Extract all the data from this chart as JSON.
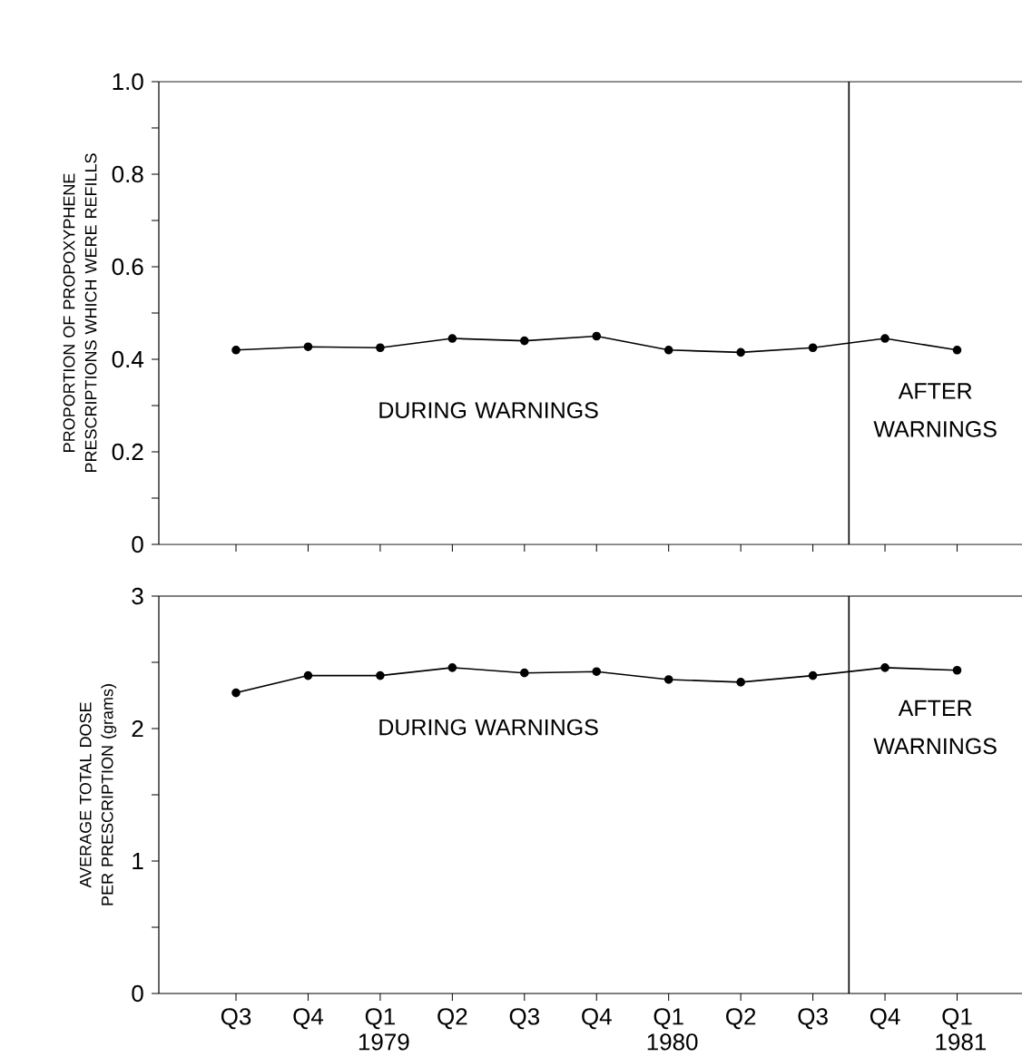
{
  "chart_data": [
    {
      "type": "line",
      "ylabel": "PROPORTION OF PROPOXYPHENE PRESCRIPTIONS WHICH WERE REFILLS",
      "categories": [
        null,
        null,
        null,
        null,
        null,
        null,
        null,
        null,
        null,
        null,
        null
      ],
      "series": [
        {
          "color": "#000000",
          "values": [
            0.42,
            0.427,
            0.425,
            0.445,
            0.44,
            0.45,
            0.42,
            0.415,
            0.425,
            0.445,
            0.42
          ]
        }
      ],
      "ylim": [
        0,
        1
      ],
      "yticks": [
        0,
        {
          "value": 0.1,
          "label": null
        },
        0.2,
        {
          "value": 0.3,
          "label": null
        },
        0.4,
        {
          "value": 0.5,
          "label": null
        },
        0.6,
        {
          "value": 0.7,
          "label": null
        },
        0.8,
        {
          "value": 0.9,
          "label": null
        },
        {
          "value": 1,
          "label": "1.0"
        }
      ],
      "annotations": [
        "DURING WARNINGS",
        "AFTER WARNINGS"
      ],
      "marker": "circle",
      "grid": false,
      "tick_labels": "y"
    },
    {
      "type": "line",
      "ylabel": "AVERAGE TOTAL DOSE PER PRESCRIPTION (grams)",
      "categories": [
        "Q3",
        "Q4",
        "Q1 1979",
        "Q2",
        "Q3",
        "Q4",
        "Q1 1980",
        "Q2",
        "Q3",
        "Q4",
        "Q1 1981"
      ],
      "series": [
        {
          "color": "#000000",
          "values": [
            2.27,
            2.4,
            2.4,
            2.46,
            2.42,
            2.43,
            2.37,
            2.35,
            2.4,
            2.46,
            2.44
          ]
        }
      ],
      "ylim": [
        0,
        3
      ],
      "yticks": [
        0,
        {
          "value": 0.5,
          "label": null
        },
        1,
        {
          "value": 1.5,
          "label": null
        },
        2,
        {
          "value": 2.5,
          "label": null
        },
        3
      ],
      "annotations": [
        "DURING WARNINGS",
        "AFTER WARNINGS"
      ],
      "marker": "circle",
      "grid": false
    }
  ]
}
